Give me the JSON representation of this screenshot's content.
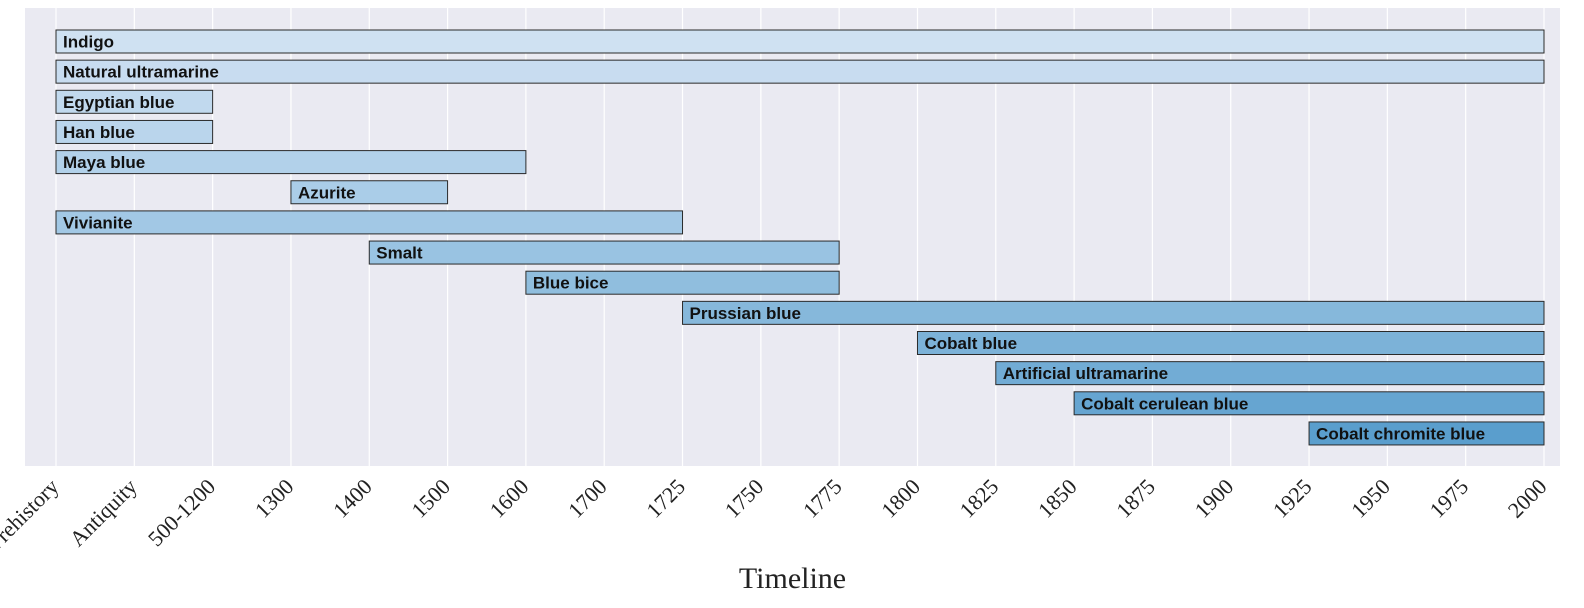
{
  "chart_data": {
    "type": "bar",
    "orientation": "horizontal",
    "title": "",
    "xlabel": "Timeline",
    "ylabel": "",
    "x_ticks": [
      "Prehistory",
      "Antiquity",
      "500-1200",
      "1300",
      "1400",
      "1500",
      "1600",
      "1700",
      "1725",
      "1750",
      "1775",
      "1800",
      "1825",
      "1850",
      "1875",
      "1900",
      "1925",
      "1950",
      "1975",
      "2000"
    ],
    "grid": true,
    "legend": "none",
    "series": [
      {
        "name": "Indigo",
        "start": "Prehistory",
        "end": "2000",
        "color": "#cfe1f2"
      },
      {
        "name": "Natural ultramarine",
        "start": "Prehistory",
        "end": "2000",
        "color": "#c8dcf0"
      },
      {
        "name": "Egyptian blue",
        "start": "Prehistory",
        "end": "500-1200",
        "color": "#c1d9ee"
      },
      {
        "name": "Han blue",
        "start": "Prehistory",
        "end": "500-1200",
        "color": "#bad5ec"
      },
      {
        "name": "Maya blue",
        "start": "Prehistory",
        "end": "1600",
        "color": "#b2d1ea"
      },
      {
        "name": "Azurite",
        "start": "1300",
        "end": "1500",
        "color": "#aacde8"
      },
      {
        "name": "Vivianite",
        "start": "Prehistory",
        "end": "1725",
        "color": "#a2c8e5"
      },
      {
        "name": "Smalt",
        "start": "1400",
        "end": "1775",
        "color": "#99c3e2"
      },
      {
        "name": "Blue bice",
        "start": "1600",
        "end": "1775",
        "color": "#90bede"
      },
      {
        "name": "Prussian blue",
        "start": "1725",
        "end": "2000",
        "color": "#86b8db"
      },
      {
        "name": "Cobalt blue",
        "start": "1800",
        "end": "2000",
        "color": "#7cb2d8"
      },
      {
        "name": "Artificial ultramarine",
        "start": "1825",
        "end": "2000",
        "color": "#72acd5"
      },
      {
        "name": "Cobalt cerulean blue",
        "start": "1850",
        "end": "2000",
        "color": "#66a5d1"
      },
      {
        "name": "Cobalt chromite blue",
        "start": "1925",
        "end": "2000",
        "color": "#5a9ecd"
      }
    ],
    "colors": {
      "plot_background": "#eaeaf2",
      "grid": "#ffffff",
      "bar_edge": "#2a2a2a"
    }
  }
}
